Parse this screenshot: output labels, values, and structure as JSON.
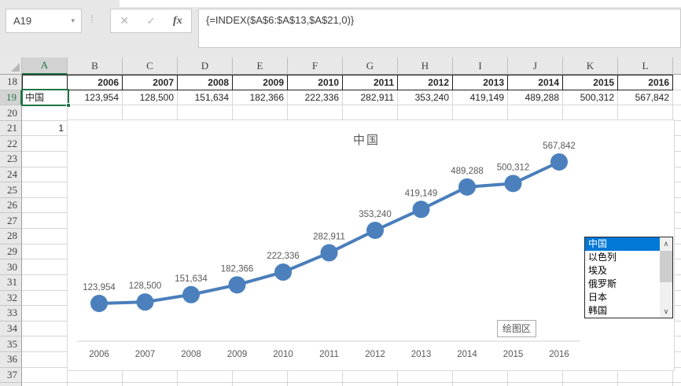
{
  "chrome": {
    "name_box_value": "A19",
    "formula": "{=INDEX($A$6:$A$13,$A$21,0)}",
    "cancel_icon": "✕",
    "enter_icon": "✓",
    "fx_icon": "fx",
    "dropdown_icon": "▾",
    "dots_icon": "⁞"
  },
  "grid": {
    "column_headers": [
      "A",
      "B",
      "C",
      "D",
      "E",
      "F",
      "G",
      "H",
      "I",
      "J",
      "K",
      "L"
    ],
    "row_start": 18,
    "row_end": 38,
    "selected_cell": "A19",
    "selected_column": "A",
    "selected_row": 19
  },
  "table": {
    "row18_years": [
      "2006",
      "2007",
      "2008",
      "2009",
      "2010",
      "2011",
      "2012",
      "2013",
      "2014",
      "2015",
      "2016"
    ],
    "row19_label": "中国",
    "row19_values": [
      "123,954",
      "128,500",
      "151,634",
      "182,366",
      "222,336",
      "282,911",
      "353,240",
      "419,149",
      "489,288",
      "500,312",
      "567,842"
    ],
    "a21_value": "1"
  },
  "chart_data": {
    "type": "line",
    "title": "中国",
    "x": [
      2006,
      2007,
      2008,
      2009,
      2010,
      2011,
      2012,
      2013,
      2014,
      2015,
      2016
    ],
    "x_tick_labels": [
      "2006",
      "2007",
      "2008",
      "2009",
      "2010",
      "2011",
      "2012",
      "2013",
      "2014",
      "2015",
      "2016"
    ],
    "values": [
      123954,
      128500,
      151634,
      182366,
      222336,
      282911,
      353240,
      419149,
      489288,
      500312,
      567842
    ],
    "data_labels": [
      "123,954",
      "128,500",
      "151,634",
      "182,366",
      "222,336",
      "282,911",
      "353,240",
      "419,149",
      "489,288",
      "500,312",
      "567,842"
    ],
    "marker": "circle",
    "show_data_labels": true,
    "legend": false,
    "gridlines": false,
    "y_axis_visible": false,
    "line_color": "#4a7ebb",
    "marker_color": "#4b80bd",
    "label_color": "#595959",
    "axis_color": "#d9d9d9",
    "ylim_implied": [
      123954,
      567842
    ]
  },
  "listbox": {
    "items": [
      "中国",
      "以色列",
      "埃及",
      "俄罗斯",
      "日本",
      "韩国"
    ],
    "selected": "中国",
    "selected_index": 0,
    "up_icon": "∧",
    "down_icon": "∨",
    "selection_color": "#0078d7"
  },
  "plot_area_tooltip": "绘图区",
  "colors": {
    "accent_green": "#217346",
    "header_bg": "#e8e8e8",
    "gridline": "#d6d6d6"
  }
}
